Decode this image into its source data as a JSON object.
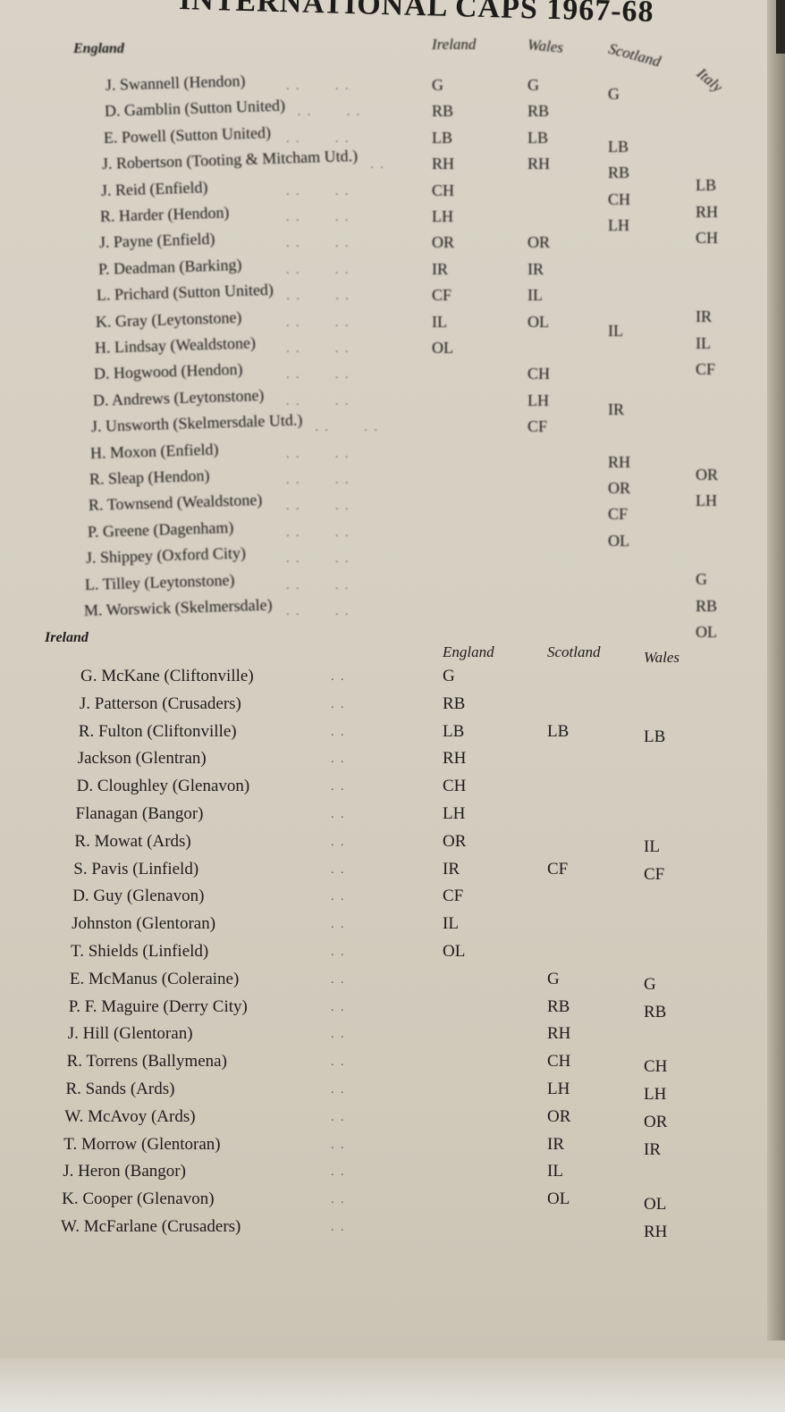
{
  "title": "INTERNATIONAL CAPS 1967-68",
  "england": {
    "heading": "England",
    "columns": [
      "Ireland",
      "Wales",
      "Scotland",
      "Italy"
    ],
    "rows": [
      {
        "name": "J. Swannell (Hendon)",
        "caps": [
          "G",
          "G",
          "G",
          ""
        ]
      },
      {
        "name": "D. Gamblin (Sutton United)",
        "caps": [
          "RB",
          "RB",
          "",
          ""
        ]
      },
      {
        "name": "E. Powell (Sutton United)",
        "caps": [
          "LB",
          "LB",
          "LB",
          ""
        ]
      },
      {
        "name": "J. Robertson (Tooting & Mitcham Utd.)",
        "caps": [
          "RH",
          "RH",
          "RB",
          "LB"
        ]
      },
      {
        "name": "J. Reid (Enfield)",
        "caps": [
          "CH",
          "",
          "CH",
          "RH"
        ]
      },
      {
        "name": "R. Harder (Hendon)",
        "caps": [
          "LH",
          "",
          "LH",
          "CH"
        ]
      },
      {
        "name": "J. Payne (Enfield)",
        "caps": [
          "OR",
          "OR",
          "",
          ""
        ]
      },
      {
        "name": "P. Deadman (Barking)",
        "caps": [
          "IR",
          "IR",
          "",
          ""
        ]
      },
      {
        "name": "L. Prichard (Sutton United)",
        "caps": [
          "CF",
          "IL",
          "",
          "IR"
        ]
      },
      {
        "name": "K. Gray (Leytonstone)",
        "caps": [
          "IL",
          "OL",
          "IL",
          "IL"
        ]
      },
      {
        "name": "H. Lindsay (Wealdstone)",
        "caps": [
          "OL",
          "",
          "",
          "CF"
        ]
      },
      {
        "name": "D. Hogwood (Hendon)",
        "caps": [
          "",
          "CH",
          "",
          ""
        ]
      },
      {
        "name": "D. Andrews (Leytonstone)",
        "caps": [
          "",
          "LH",
          "IR",
          ""
        ]
      },
      {
        "name": "J. Unsworth (Skelmersdale Utd.)",
        "caps": [
          "",
          "CF",
          "",
          ""
        ]
      },
      {
        "name": "H. Moxon (Enfield)",
        "caps": [
          "",
          "",
          "RH",
          "OR"
        ]
      },
      {
        "name": "R. Sleap (Hendon)",
        "caps": [
          "",
          "",
          "OR",
          "LH"
        ]
      },
      {
        "name": "R. Townsend (Wealdstone)",
        "caps": [
          "",
          "",
          "CF",
          ""
        ]
      },
      {
        "name": "P. Greene (Dagenham)",
        "caps": [
          "",
          "",
          "OL",
          ""
        ]
      },
      {
        "name": "J. Shippey (Oxford City)",
        "caps": [
          "",
          "",
          "",
          "G"
        ]
      },
      {
        "name": "L. Tilley (Leytonstone)",
        "caps": [
          "",
          "",
          "",
          "RB"
        ]
      },
      {
        "name": "M. Worswick (Skelmersdale)",
        "caps": [
          "",
          "",
          "",
          "OL"
        ]
      }
    ]
  },
  "ireland": {
    "heading": "Ireland",
    "columns": [
      "England",
      "Scotland",
      "Wales"
    ],
    "rows": [
      {
        "name": "G. McKane (Cliftonville)",
        "caps": [
          "G",
          "",
          ""
        ]
      },
      {
        "name": "J. Patterson (Crusaders)",
        "caps": [
          "RB",
          "",
          ""
        ]
      },
      {
        "name": "R. Fulton (Cliftonville)",
        "caps": [
          "LB",
          "LB",
          "LB"
        ]
      },
      {
        "name": "Jackson (Glentran)",
        "caps": [
          "RH",
          "",
          ""
        ]
      },
      {
        "name": "D. Cloughley (Glenavon)",
        "caps": [
          "CH",
          "",
          ""
        ]
      },
      {
        "name": "Flanagan (Bangor)",
        "caps": [
          "LH",
          "",
          ""
        ]
      },
      {
        "name": "R. Mowat (Ards)",
        "caps": [
          "OR",
          "",
          "IL"
        ]
      },
      {
        "name": "S. Pavis (Linfield)",
        "caps": [
          "IR",
          "CF",
          "CF"
        ]
      },
      {
        "name": "D. Guy (Glenavon)",
        "caps": [
          "CF",
          "",
          ""
        ]
      },
      {
        "name": "Johnston (Glentoran)",
        "caps": [
          "IL",
          "",
          ""
        ]
      },
      {
        "name": "T. Shields (Linfield)",
        "caps": [
          "OL",
          "",
          ""
        ]
      },
      {
        "name": "E. McManus (Coleraine)",
        "caps": [
          "",
          "G",
          "G"
        ]
      },
      {
        "name": "P. F. Maguire (Derry City)",
        "caps": [
          "",
          "RB",
          "RB"
        ]
      },
      {
        "name": "J. Hill (Glentoran)",
        "caps": [
          "",
          "RH",
          ""
        ]
      },
      {
        "name": "R. Torrens (Ballymena)",
        "caps": [
          "",
          "CH",
          "CH"
        ]
      },
      {
        "name": "R. Sands (Ards)",
        "caps": [
          "",
          "LH",
          "LH"
        ]
      },
      {
        "name": "W. McAvoy (Ards)",
        "caps": [
          "",
          "OR",
          "OR"
        ]
      },
      {
        "name": "T. Morrow (Glentoran)",
        "caps": [
          "",
          "IR",
          "IR"
        ]
      },
      {
        "name": "J. Heron (Bangor)",
        "caps": [
          "",
          "IL",
          ""
        ]
      },
      {
        "name": "K. Cooper (Glenavon)",
        "caps": [
          "",
          "OL",
          "OL"
        ]
      },
      {
        "name": "W. McFarlane (Crusaders)",
        "caps": [
          "",
          "",
          "RH"
        ]
      }
    ]
  }
}
